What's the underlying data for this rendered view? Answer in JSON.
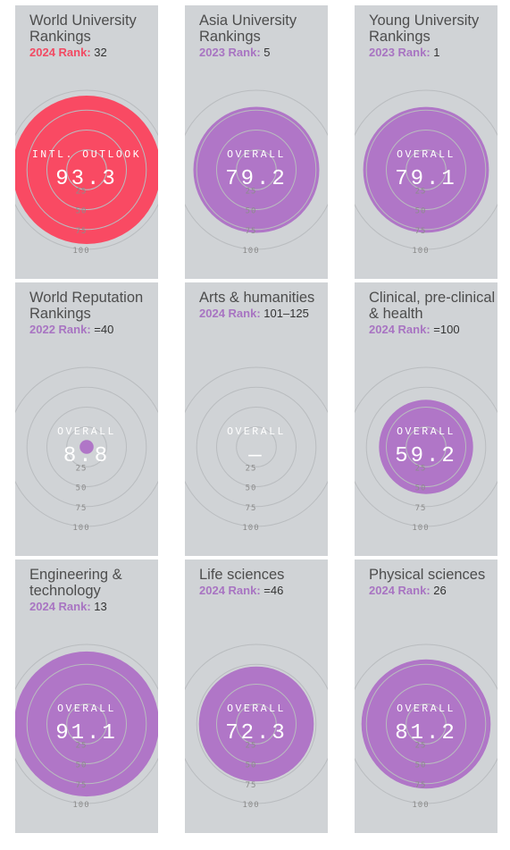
{
  "colors": {
    "purple": "#b076c7",
    "red": "#f94a63",
    "card_bg": "#d0d3d6",
    "ring": "#b9bcbf"
  },
  "ticks": [
    "25",
    "50",
    "75",
    "100"
  ],
  "cards": [
    {
      "title": "World University Rankings",
      "rank_label": "2024 Rank:",
      "rank_value": "32",
      "metric_label": "INTL. OUTLOOK",
      "metric_value": "93.3",
      "level": 93.3,
      "accent": "red"
    },
    {
      "title": "Asia University Rankings",
      "rank_label": "2023 Rank:",
      "rank_value": "5",
      "metric_label": "OVERALL",
      "metric_value": "79.2",
      "level": 79.2,
      "accent": "purple"
    },
    {
      "title": "Young University Rankings",
      "rank_label": "2023 Rank:",
      "rank_value": "1",
      "metric_label": "OVERALL",
      "metric_value": "79.1",
      "level": 79.1,
      "accent": "purple"
    },
    {
      "title": "World Reputation Rankings",
      "rank_label": "2022 Rank:",
      "rank_value": "=40",
      "metric_label": "OVERALL",
      "metric_value": "8.8",
      "level": 8.8,
      "accent": "purple"
    },
    {
      "title": "Arts & humanities",
      "rank_label": "2024 Rank:",
      "rank_value": "101–125",
      "metric_label": "OVERALL",
      "metric_value": "—",
      "level": 0,
      "accent": "purple"
    },
    {
      "title": "Clinical, pre-clinical & health",
      "rank_label": "2024 Rank:",
      "rank_value": "=100",
      "metric_label": "OVERALL",
      "metric_value": "59.2",
      "level": 59.2,
      "accent": "purple"
    },
    {
      "title": "Engineering & technology",
      "rank_label": "2024 Rank:",
      "rank_value": "13",
      "metric_label": "OVERALL",
      "metric_value": "91.1",
      "level": 91.1,
      "accent": "purple"
    },
    {
      "title": "Life sciences",
      "rank_label": "2024 Rank:",
      "rank_value": "=46",
      "metric_label": "OVERALL",
      "metric_value": "72.3",
      "level": 72.3,
      "accent": "purple"
    },
    {
      "title": "Physical sciences",
      "rank_label": "2024 Rank:",
      "rank_value": "26",
      "metric_label": "OVERALL",
      "metric_value": "81.2",
      "level": 81.2,
      "accent": "purple"
    }
  ]
}
